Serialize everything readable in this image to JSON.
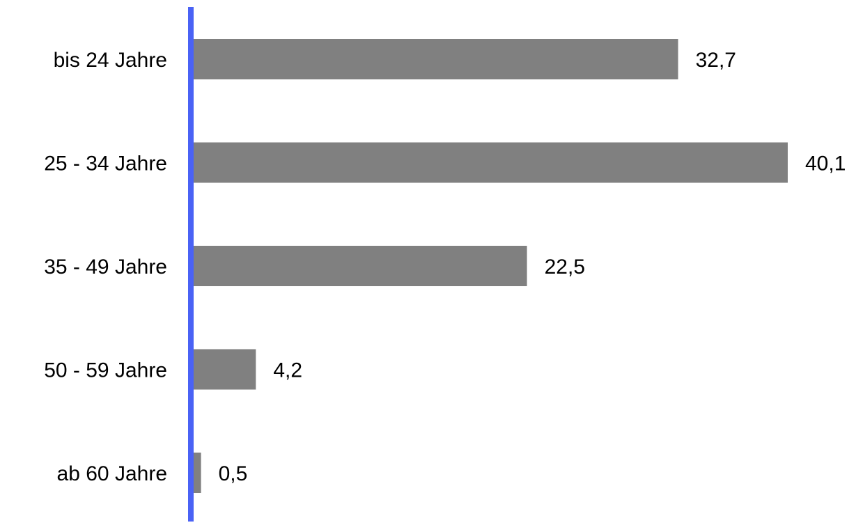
{
  "chart_data": {
    "type": "bar",
    "orientation": "horizontal",
    "categories": [
      "bis 24 Jahre",
      "25 - 34 Jahre",
      "35 - 49 Jahre",
      "50 - 59 Jahre",
      "ab 60 Jahre"
    ],
    "values": [
      32.7,
      40.1,
      22.5,
      4.2,
      0.5
    ],
    "value_labels": [
      "32,7",
      "40,1",
      "22,5",
      "4,2",
      "0,5"
    ],
    "title": "",
    "xlabel": "",
    "ylabel": "",
    "xlim": [
      0,
      45
    ],
    "grid": false,
    "legend": "none",
    "colors": {
      "bar": "#808080",
      "axis": "#4a62f5",
      "text": "#000000"
    }
  }
}
